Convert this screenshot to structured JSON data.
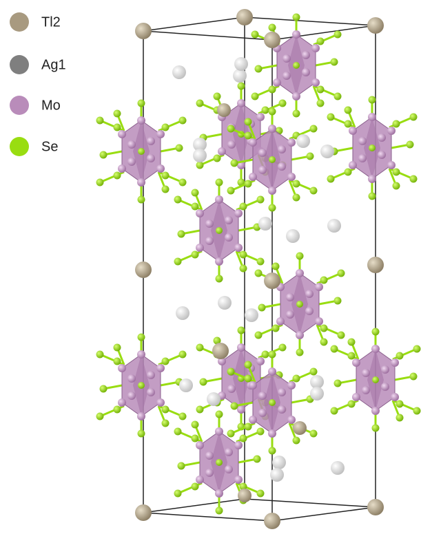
{
  "legend": {
    "items": [
      {
        "label": "Tl2",
        "color": "#a89a80"
      },
      {
        "label": "Ag1",
        "color": "#7f7f7f"
      },
      {
        "label": "Mo",
        "color": "#b98cba"
      },
      {
        "label": "Se",
        "color": "#99dd11"
      }
    ]
  }
}
